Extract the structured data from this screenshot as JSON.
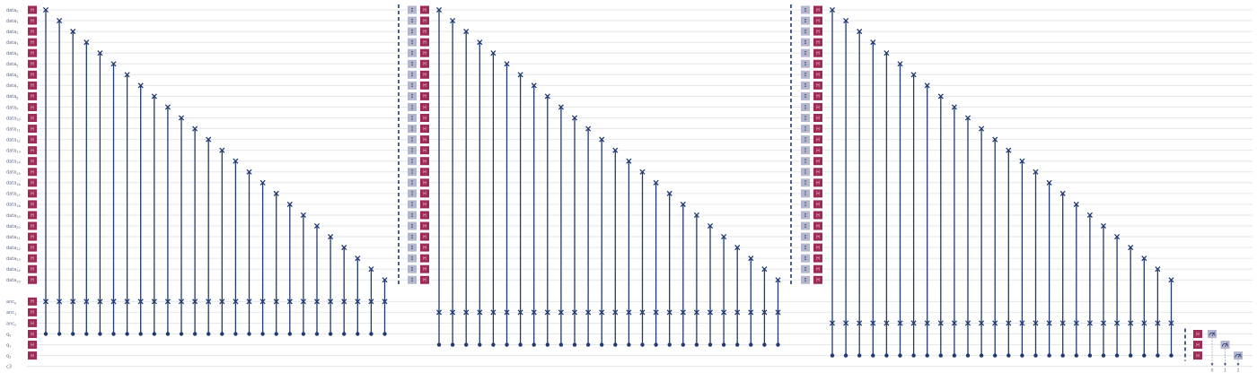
{
  "circuit": {
    "data_register_label": "data",
    "data_qubits": 26,
    "anc_register_label": "anc",
    "anc_qubits": 3,
    "flag_register_label": "q",
    "flag_qubits": 3,
    "classical_register_label": "c3",
    "gate_colors": {
      "hadamard": "#9e2a56",
      "identity": "#b3b6cc",
      "wire": "#1f3a72"
    },
    "gate_text": {
      "hadamard": "H",
      "identity": "I",
      "measure_icon": "meter-icon"
    },
    "stages": [
      {
        "anc_index": 0,
        "flag_index": 0
      },
      {
        "anc_index": 1,
        "flag_index": 1
      },
      {
        "anc_index": 2,
        "flag_index": 2
      }
    ],
    "measure_indices": [
      "0",
      "1",
      "2"
    ]
  }
}
